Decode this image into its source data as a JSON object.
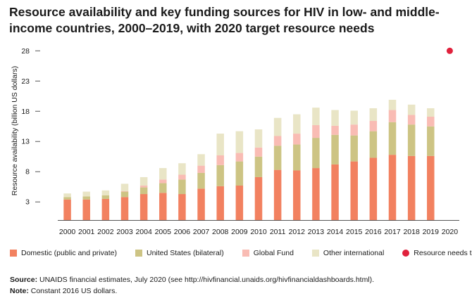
{
  "title": "Resource availability and key funding sources for HIV in low- and middle-income countries, 2000–2019, with 2020 target resource needs",
  "colors": {
    "domestic": "#f28160",
    "us_bilateral": "#cdc484",
    "global_fund": "#f9bcb4",
    "other_international": "#e9e5c6",
    "target": "#e0213c",
    "axis": "#555555"
  },
  "chart_data": {
    "type": "bar",
    "stacked": true,
    "title": "Resource availability and key funding sources for HIV in low- and middle-income countries, 2000–2019, with 2020 target resource needs",
    "ylabel": "Resource availability (billion US dollars)",
    "xlabel": "",
    "ylim": [
      0,
      28.5
    ],
    "yticks": [
      3,
      8,
      13,
      18,
      23,
      28
    ],
    "grid": false,
    "legend": "bottom",
    "categories": [
      "2000",
      "2001",
      "2002",
      "2003",
      "2004",
      "2005",
      "2006",
      "2007",
      "2008",
      "2009",
      "2010",
      "2011",
      "2012",
      "2013",
      "2014",
      "2015",
      "2016",
      "2017",
      "2018",
      "2019",
      "2020"
    ],
    "series": [
      {
        "name": "Domestic (public and private)",
        "color_key": "domestic",
        "values": [
          3.4,
          3.4,
          3.5,
          3.8,
          4.3,
          4.5,
          4.3,
          5.2,
          5.6,
          5.7,
          7.1,
          8.3,
          8.2,
          8.6,
          9.2,
          9.7,
          10.3,
          10.8,
          10.6,
          10.6,
          null
        ]
      },
      {
        "name": "United States (bilateral)",
        "color_key": "us_bilateral",
        "values": [
          0.4,
          0.5,
          0.6,
          0.9,
          1.1,
          1.6,
          2.4,
          2.6,
          3.5,
          4.0,
          3.4,
          4.0,
          4.3,
          5.0,
          4.9,
          4.3,
          4.4,
          5.4,
          5.2,
          4.9,
          null
        ]
      },
      {
        "name": "Global Fund",
        "color_key": "global_fund",
        "values": [
          0.0,
          0.0,
          0.0,
          0.1,
          0.3,
          0.6,
          0.8,
          1.2,
          1.6,
          1.4,
          1.5,
          1.6,
          1.8,
          2.1,
          1.5,
          1.8,
          1.7,
          2.0,
          1.6,
          1.6,
          null
        ]
      },
      {
        "name": "Other international",
        "color_key": "other_international",
        "values": [
          0.6,
          0.8,
          0.8,
          1.2,
          1.4,
          1.9,
          1.9,
          1.9,
          3.6,
          3.6,
          3.0,
          3.0,
          3.2,
          2.9,
          2.6,
          2.3,
          2.1,
          1.7,
          1.7,
          1.4,
          null
        ]
      }
    ],
    "target": {
      "name": "Resource needs target",
      "color_key": "target",
      "category": "2020",
      "value": 28.0
    }
  },
  "source": {
    "label": "Source:",
    "text": " UNAIDS financial estimates, July 2020 (see http://hivfinancial.unaids.org/hivfinancialdashboards.html)."
  },
  "note": {
    "label": "Note:",
    "text": " Constant 2016 US dollars."
  }
}
